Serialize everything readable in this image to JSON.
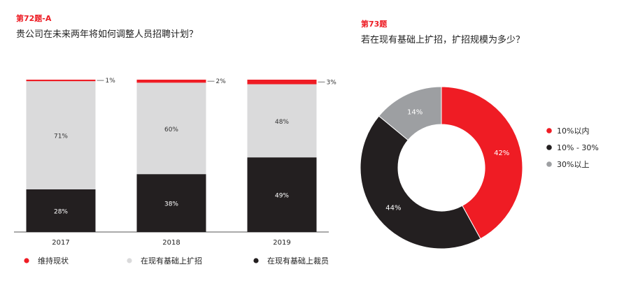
{
  "colors": {
    "accent": "#ed1c24",
    "red": "#ef1c24",
    "light_gray": "#dadadb",
    "dark": "#231f20",
    "mid_gray": "#9d9fa2",
    "text": "#222222",
    "white_label": "#ffffff"
  },
  "left": {
    "question_number": "第72题-A",
    "question_title": "贵公司在未来两年将如何调整人员招聘计划？"
  },
  "right": {
    "question_number": "第73题",
    "question_title": "若在现有基础上扩招，扩招规模为多少？"
  },
  "chart_data": [
    {
      "type": "bar",
      "stacked": true,
      "categories": [
        "2017",
        "2018",
        "2019"
      ],
      "series": [
        {
          "name": "在现有基础上裁员",
          "color": "#231f20",
          "values": [
            28,
            38,
            49
          ],
          "labels": [
            "28%",
            "38%",
            "49%"
          ]
        },
        {
          "name": "在现有基础上扩招",
          "color": "#dadadb",
          "values": [
            71,
            60,
            48
          ],
          "labels": [
            "71%",
            "60%",
            "48%"
          ]
        },
        {
          "name": "维持现状",
          "color": "#ef1c24",
          "values": [
            1,
            2,
            3
          ],
          "labels": [
            "1%",
            "2%",
            "3%"
          ]
        }
      ],
      "legend": [
        "维持现状",
        "在现有基础上扩招",
        "在现有基础上裁员"
      ],
      "legend_colors": [
        "#ef1c24",
        "#dadadb",
        "#231f20"
      ],
      "legend_position": "bottom",
      "ylim": [
        0,
        100
      ],
      "grid": false
    },
    {
      "type": "pie",
      "donut": true,
      "slices": [
        {
          "name": "10%以内",
          "value": 42,
          "label": "42%",
          "color": "#ef1c24"
        },
        {
          "name": "10% - 30%",
          "value": 44,
          "label": "44%",
          "color": "#231f20"
        },
        {
          "name": "30%以上",
          "value": 14,
          "label": "14%",
          "color": "#9d9fa2"
        }
      ],
      "legend_position": "right"
    }
  ]
}
